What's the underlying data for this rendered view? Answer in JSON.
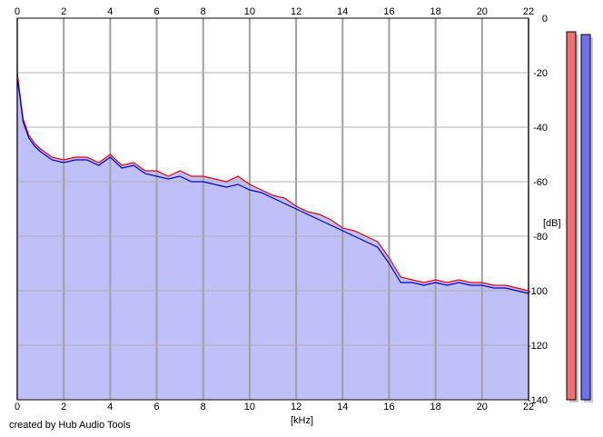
{
  "credit": "created by Hub Audio Tools",
  "chart_data": {
    "type": "area",
    "title": "",
    "xlabel": "[kHz]",
    "ylabel": "[dB]",
    "xlim": [
      0,
      22
    ],
    "ylim": [
      -140,
      0
    ],
    "x_ticks": [
      0,
      2,
      4,
      6,
      8,
      10,
      12,
      14,
      16,
      18,
      20,
      22
    ],
    "y_ticks": [
      0,
      -20,
      -40,
      -60,
      -80,
      -100,
      -120,
      -140
    ],
    "grid": true,
    "colors": {
      "fill": "#c0c0f8",
      "left": "#ee0000",
      "right": "#0000cc",
      "grid": "#a0a0a0"
    },
    "series": [
      {
        "x": [
          0,
          0.1,
          0.25,
          0.5,
          0.75,
          1.0,
          1.5,
          2.0,
          2.5,
          3.0,
          3.5,
          4.0,
          4.5,
          5.0,
          5.5,
          6.0,
          6.5,
          7.0,
          7.5,
          8.0,
          8.5,
          9.0,
          9.5,
          10.0,
          10.5,
          11.0,
          11.5,
          12.0,
          12.5,
          13.0,
          13.5,
          14.0,
          14.5,
          15.0,
          15.5,
          16.0,
          16.5,
          17.0,
          17.5,
          18.0,
          18.5,
          19.0,
          19.5,
          20.0,
          20.5,
          21.0,
          21.5,
          22.0
        ],
        "values": [
          -20,
          -27,
          -37,
          -43,
          -46,
          -48,
          -51,
          -52,
          -51,
          -51,
          -53,
          -50,
          -54,
          -53,
          -56,
          -56,
          -58,
          -56,
          -58,
          -58,
          -59,
          -60,
          -58,
          -61,
          -63,
          -65,
          -66,
          -69,
          -71,
          -72,
          -74,
          -77,
          -78,
          -80,
          -82,
          -88,
          -95,
          -96,
          -97,
          -96,
          -97,
          -96,
          -97,
          -97,
          -98,
          -98,
          -99,
          -100
        ]
      },
      {
        "x": [
          0,
          0.1,
          0.25,
          0.5,
          0.75,
          1.0,
          1.5,
          2.0,
          2.5,
          3.0,
          3.5,
          4.0,
          4.5,
          5.0,
          5.5,
          6.0,
          6.5,
          7.0,
          7.5,
          8.0,
          8.5,
          9.0,
          9.5,
          10.0,
          10.5,
          11.0,
          11.5,
          12.0,
          12.5,
          13.0,
          13.5,
          14.0,
          14.5,
          15.0,
          15.5,
          16.0,
          16.5,
          17.0,
          17.5,
          18.0,
          18.5,
          19.0,
          19.5,
          20.0,
          20.5,
          21.0,
          21.5,
          22.0
        ],
        "values": [
          -22,
          -28,
          -38,
          -44,
          -47,
          -49,
          -52,
          -53,
          -52,
          -52,
          -54,
          -51,
          -55,
          -54,
          -57,
          -58,
          -59,
          -58,
          -60,
          -60,
          -61,
          -62,
          -61,
          -63,
          -64,
          -66,
          -68,
          -70,
          -72,
          -74,
          -76,
          -78,
          -80,
          -82,
          -84,
          -90,
          -97,
          -97,
          -98,
          -97,
          -98,
          -97,
          -98,
          -98,
          -99,
          -99,
          -100,
          -101
        ]
      }
    ],
    "level_meters": [
      {
        "top_db": -5,
        "color": "#f07070"
      },
      {
        "top_db": -6,
        "color": "#7070f0"
      }
    ]
  }
}
